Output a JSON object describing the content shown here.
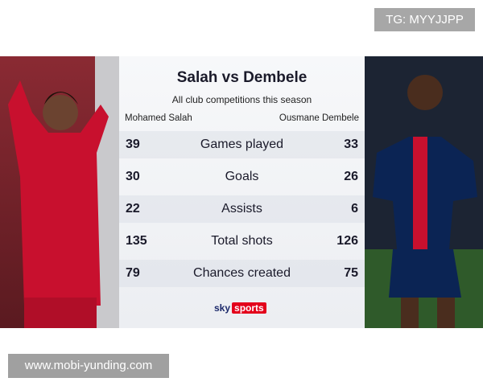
{
  "watermark_top": "TG: MYYJJPP",
  "watermark_bottom": "www.mobi-yunding.com",
  "header": {
    "title": "Salah vs Dembele",
    "subtitle": "All club competitions this season"
  },
  "players": [
    "Mohamed Salah",
    "Ousmane Dembele"
  ],
  "table": {
    "rows": [
      [
        39,
        "Games played",
        33
      ],
      [
        30,
        "Goals",
        26
      ],
      [
        22,
        "Assists",
        6
      ],
      [
        135,
        "Total shots",
        126
      ],
      [
        79,
        "Chances created",
        75
      ]
    ]
  },
  "footer": {
    "logo_sky": "sky",
    "logo_sports": "sports"
  }
}
